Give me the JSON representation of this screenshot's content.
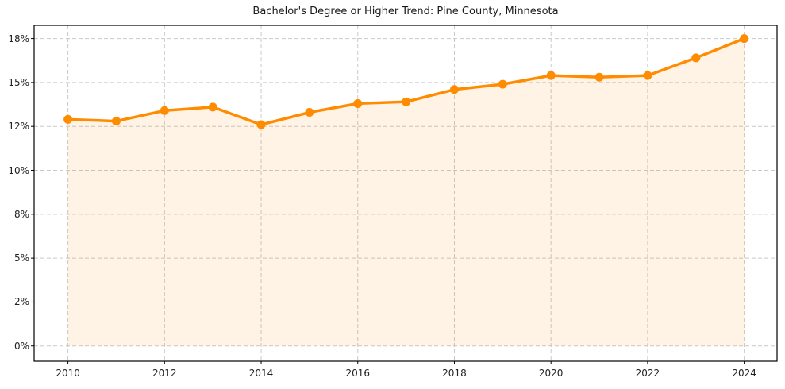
{
  "chart_data": {
    "type": "area",
    "title": "Bachelor's Degree or Higher Trend: Pine County, Minnesota",
    "xlabel": "",
    "ylabel": "",
    "x": [
      2010,
      2011,
      2012,
      2013,
      2014,
      2015,
      2016,
      2017,
      2018,
      2019,
      2020,
      2021,
      2022,
      2023,
      2024
    ],
    "series": [
      {
        "name": "Bachelor's degree or higher (%)",
        "values": [
          12.9,
          12.8,
          13.4,
          13.6,
          12.6,
          13.3,
          13.8,
          13.9,
          14.6,
          14.9,
          15.4,
          15.3,
          15.4,
          16.4,
          17.5
        ]
      }
    ],
    "y_ticks": [
      {
        "v": 0,
        "label": "0%"
      },
      {
        "v": 2.5,
        "label": "2%"
      },
      {
        "v": 5,
        "label": "5%"
      },
      {
        "v": 7.5,
        "label": "8%"
      },
      {
        "v": 10,
        "label": "10%"
      },
      {
        "v": 12.5,
        "label": "12%"
      },
      {
        "v": 15,
        "label": "15%"
      },
      {
        "v": 17.5,
        "label": "18%"
      }
    ],
    "x_ticks": [
      {
        "v": 2010,
        "label": "2010"
      },
      {
        "v": 2012,
        "label": "2012"
      },
      {
        "v": 2014,
        "label": "2014"
      },
      {
        "v": 2016,
        "label": "2016"
      },
      {
        "v": 2018,
        "label": "2018"
      },
      {
        "v": 2020,
        "label": "2020"
      },
      {
        "v": 2022,
        "label": "2022"
      },
      {
        "v": 2024,
        "label": "2024"
      }
    ],
    "xlim": [
      2009.3,
      2024.68
    ],
    "ylim": [
      -0.87,
      18.25
    ],
    "grid": true,
    "legend_position": "none",
    "colors": {
      "line": "#FF8C00",
      "marker": "#FF8C00",
      "area_fill": "rgba(255,140,0,0.10)",
      "grid": "#c9c9c9",
      "axis": "#000000",
      "text": "#222222"
    }
  }
}
